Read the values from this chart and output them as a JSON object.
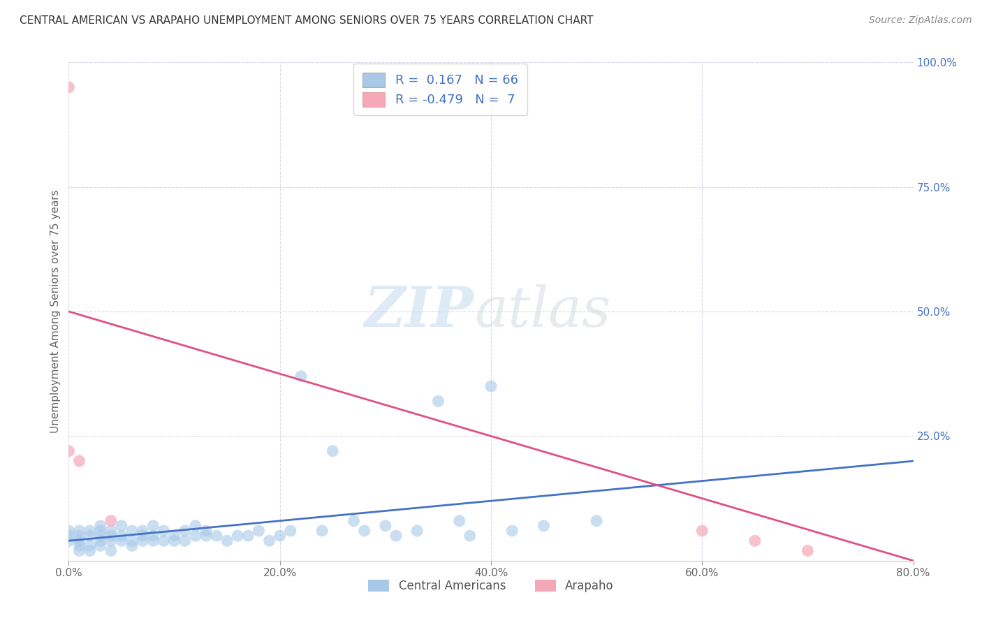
{
  "title": "CENTRAL AMERICAN VS ARAPAHO UNEMPLOYMENT AMONG SENIORS OVER 75 YEARS CORRELATION CHART",
  "source": "Source: ZipAtlas.com",
  "ylabel": "Unemployment Among Seniors over 75 years",
  "xlim": [
    0.0,
    0.8
  ],
  "ylim": [
    0.0,
    1.0
  ],
  "xtick_labels": [
    "0.0%",
    "20.0%",
    "40.0%",
    "60.0%",
    "80.0%"
  ],
  "xtick_vals": [
    0.0,
    0.2,
    0.4,
    0.6,
    0.8
  ],
  "ytick_labels": [
    "25.0%",
    "50.0%",
    "75.0%",
    "100.0%"
  ],
  "ytick_vals": [
    0.25,
    0.5,
    0.75,
    1.0
  ],
  "blue_R": 0.167,
  "blue_N": 66,
  "pink_R": -0.479,
  "pink_N": 7,
  "blue_color": "#a8c8e8",
  "pink_color": "#f4a8b8",
  "blue_line_color": "#4472c4",
  "pink_line_color": "#e05080",
  "background_color": "#ffffff",
  "grid_color": "#d8d8e8",
  "legend_label_color": "#4472c4",
  "title_color": "#333333",
  "source_color": "#888888",
  "ylabel_color": "#666666",
  "tick_color": "#666666",
  "blue_scatter_x": [
    0.0,
    0.0,
    0.0,
    0.01,
    0.01,
    0.01,
    0.01,
    0.01,
    0.02,
    0.02,
    0.02,
    0.02,
    0.03,
    0.03,
    0.03,
    0.03,
    0.03,
    0.04,
    0.04,
    0.04,
    0.04,
    0.05,
    0.05,
    0.05,
    0.06,
    0.06,
    0.06,
    0.07,
    0.07,
    0.07,
    0.08,
    0.08,
    0.08,
    0.09,
    0.09,
    0.1,
    0.1,
    0.11,
    0.11,
    0.12,
    0.12,
    0.13,
    0.13,
    0.14,
    0.15,
    0.16,
    0.17,
    0.18,
    0.19,
    0.2,
    0.21,
    0.22,
    0.24,
    0.25,
    0.27,
    0.28,
    0.3,
    0.31,
    0.33,
    0.35,
    0.37,
    0.38,
    0.4,
    0.42,
    0.45,
    0.5
  ],
  "blue_scatter_y": [
    0.04,
    0.05,
    0.06,
    0.02,
    0.03,
    0.04,
    0.05,
    0.06,
    0.02,
    0.03,
    0.05,
    0.06,
    0.03,
    0.04,
    0.05,
    0.06,
    0.07,
    0.02,
    0.04,
    0.05,
    0.06,
    0.04,
    0.05,
    0.07,
    0.03,
    0.04,
    0.06,
    0.04,
    0.05,
    0.06,
    0.04,
    0.05,
    0.07,
    0.04,
    0.06,
    0.04,
    0.05,
    0.04,
    0.06,
    0.05,
    0.07,
    0.05,
    0.06,
    0.05,
    0.04,
    0.05,
    0.05,
    0.06,
    0.04,
    0.05,
    0.06,
    0.37,
    0.06,
    0.22,
    0.08,
    0.06,
    0.07,
    0.05,
    0.06,
    0.32,
    0.08,
    0.05,
    0.35,
    0.06,
    0.07,
    0.08
  ],
  "pink_scatter_x": [
    0.0,
    0.0,
    0.01,
    0.04,
    0.6,
    0.65,
    0.7
  ],
  "pink_scatter_y": [
    0.95,
    0.22,
    0.2,
    0.08,
    0.06,
    0.04,
    0.02
  ],
  "blue_line_x0": 0.0,
  "blue_line_x1": 0.8,
  "blue_line_y0": 0.04,
  "blue_line_y1": 0.2,
  "pink_line_x0": 0.0,
  "pink_line_x1": 0.8,
  "pink_line_y0": 0.5,
  "pink_line_y1": 0.0
}
